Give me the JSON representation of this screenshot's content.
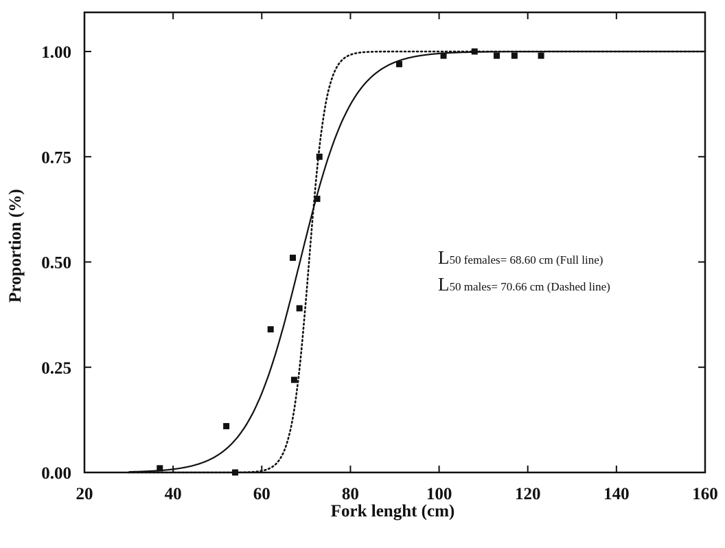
{
  "chart_data": {
    "type": "scatter",
    "xlabel": "Fork lenght (cm)",
    "ylabel": "Proportion (%)",
    "xlim": [
      20,
      160
    ],
    "ylim": [
      0,
      1.09
    ],
    "x_ticks": [
      20,
      40,
      60,
      80,
      100,
      120,
      140,
      160
    ],
    "y_ticks": [
      "0.00",
      "0.25",
      "0.50",
      "0.75",
      "1.00"
    ],
    "grid": false,
    "legend": "none",
    "points": [
      {
        "x": 37,
        "y": 0.01
      },
      {
        "x": 52,
        "y": 0.11
      },
      {
        "x": 54,
        "y": 0.0
      },
      {
        "x": 62,
        "y": 0.34
      },
      {
        "x": 67,
        "y": 0.51
      },
      {
        "x": 67.3,
        "y": 0.22
      },
      {
        "x": 68.5,
        "y": 0.39
      },
      {
        "x": 72.5,
        "y": 0.65
      },
      {
        "x": 73,
        "y": 0.75
      },
      {
        "x": 91,
        "y": 0.97
      },
      {
        "x": 101,
        "y": 0.99
      },
      {
        "x": 108,
        "y": 1.0
      },
      {
        "x": 113,
        "y": 0.99
      },
      {
        "x": 117,
        "y": 0.99
      },
      {
        "x": 123,
        "y": 0.99
      }
    ],
    "curves": [
      {
        "style": "solid",
        "l50": 68.6,
        "slope": 0.17,
        "x_range": [
          30,
          160
        ]
      },
      {
        "style": "dotted",
        "l50": 70.66,
        "slope": 0.52,
        "x_range": [
          30,
          160
        ]
      }
    ],
    "annotations": [
      {
        "big": "L",
        "sub": "50",
        "text": " females= 68.60 cm (Full line)"
      },
      {
        "big": "L",
        "sub": "50",
        "text": " males= 70.66 cm (Dashed line)"
      }
    ],
    "colors": {
      "ink": "#111111",
      "background": "#ffffff"
    }
  }
}
